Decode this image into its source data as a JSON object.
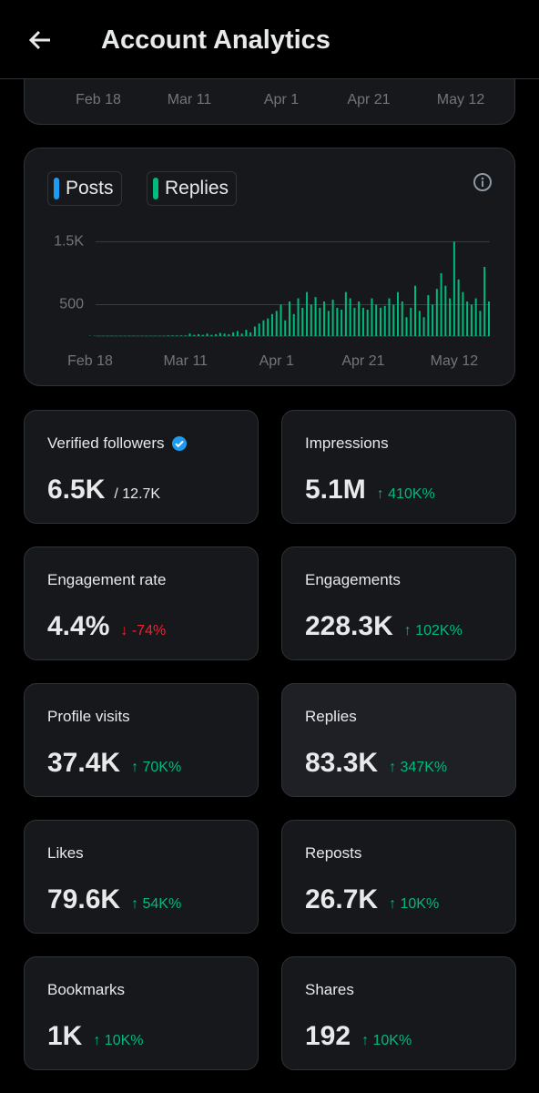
{
  "header": {
    "title": "Account Analytics"
  },
  "top_chart": {
    "x_labels": [
      "Feb 18",
      "Mar 11",
      "Apr 1",
      "Apr 21",
      "May 12"
    ]
  },
  "chart_data": {
    "type": "bar",
    "categories": [
      null,
      null,
      null,
      null,
      "Feb 18",
      null,
      null,
      null,
      null,
      null,
      null,
      null,
      null,
      null,
      null,
      null,
      null,
      null,
      null,
      null,
      null,
      null,
      null,
      null,
      null,
      null,
      "Mar 11",
      null,
      null,
      null,
      null,
      null,
      null,
      null,
      null,
      null,
      null,
      null,
      null,
      null,
      null,
      null,
      null,
      null,
      null,
      null,
      null,
      "Apr 1",
      null,
      null,
      null,
      null,
      null,
      null,
      null,
      null,
      null,
      null,
      null,
      null,
      null,
      null,
      null,
      null,
      null,
      null,
      null,
      "Apr 21",
      null,
      null,
      null,
      null,
      null,
      null,
      null,
      null,
      null,
      null,
      null,
      null,
      null,
      null,
      null,
      null,
      null,
      null,
      null,
      null,
      "May 12",
      null,
      null,
      null,
      null,
      null,
      null,
      null,
      null
    ],
    "series": [
      {
        "name": "Posts",
        "color": "#1d9bf0",
        "values": [
          0,
          0,
          0,
          0,
          0,
          0,
          0,
          0,
          0,
          0,
          0,
          0,
          0,
          0,
          0,
          0,
          0,
          0,
          0,
          0,
          0,
          0,
          0,
          0,
          0,
          0,
          0,
          0,
          0,
          0,
          0,
          0,
          0,
          0,
          0,
          0,
          0,
          0,
          0,
          0,
          0,
          0,
          0,
          0,
          0,
          0,
          0,
          0,
          0,
          0,
          0,
          0,
          0,
          0,
          0,
          0,
          0,
          0,
          0,
          0,
          0,
          0,
          0,
          0,
          0,
          0,
          0,
          0,
          0,
          0,
          0,
          0,
          0,
          0,
          0,
          0,
          0,
          0,
          0,
          0,
          0,
          0,
          0,
          0,
          0,
          0,
          0,
          0,
          0,
          0,
          0,
          0,
          0,
          0,
          0,
          0,
          0
        ]
      },
      {
        "name": "Replies",
        "color": "#00ba7c",
        "values": [
          0,
          0,
          0,
          0,
          5,
          5,
          5,
          5,
          5,
          5,
          5,
          5,
          5,
          5,
          5,
          5,
          5,
          5,
          5,
          5,
          5,
          5,
          10,
          10,
          10,
          10,
          10,
          40,
          20,
          30,
          20,
          40,
          20,
          30,
          50,
          40,
          30,
          60,
          80,
          40,
          100,
          60,
          150,
          200,
          250,
          280,
          350,
          400,
          500,
          250,
          550,
          350,
          600,
          450,
          700,
          500,
          620,
          450,
          550,
          400,
          580,
          450,
          420,
          700,
          600,
          450,
          550,
          450,
          420,
          600,
          500,
          450,
          480,
          600,
          500,
          700,
          550,
          300,
          450,
          800,
          400,
          300,
          650,
          500,
          750,
          1000,
          800,
          600,
          1500,
          900,
          700,
          550,
          500,
          600,
          400,
          1100,
          550
        ]
      }
    ],
    "ylim": [
      0,
      1650
    ],
    "yticks": [
      500,
      {
        "value": 1500,
        "label": "1.5K"
      }
    ],
    "grid": true
  },
  "stats": [
    {
      "label": "Verified followers",
      "value": "6.5K",
      "total": "/ 12.7K"
    },
    {
      "label": "Impressions",
      "value": "5.1M",
      "change": "↑ 410K%",
      "direction": "up"
    },
    {
      "label": "Engagement rate",
      "value": "4.4%",
      "change": "↓ -74%",
      "direction": "down"
    },
    {
      "label": "Engagements",
      "value": "228.3K",
      "change": "↑ 102K%",
      "direction": "up"
    },
    {
      "label": "Profile visits",
      "value": "37.4K",
      "change": "↑ 70K%",
      "direction": "up"
    },
    {
      "label": "Replies",
      "value": "83.3K",
      "change": "↑ 347K%",
      "direction": "up"
    },
    {
      "label": "Likes",
      "value": "79.6K",
      "change": "↑ 54K%",
      "direction": "up"
    },
    {
      "label": "Reposts",
      "value": "26.7K",
      "change": "↑ 10K%",
      "direction": "up"
    },
    {
      "label": "Bookmarks",
      "value": "1K",
      "change": "↑ 10K%",
      "direction": "up"
    },
    {
      "label": "Shares",
      "value": "192",
      "change": "↑ 10K%",
      "direction": "up"
    }
  ]
}
